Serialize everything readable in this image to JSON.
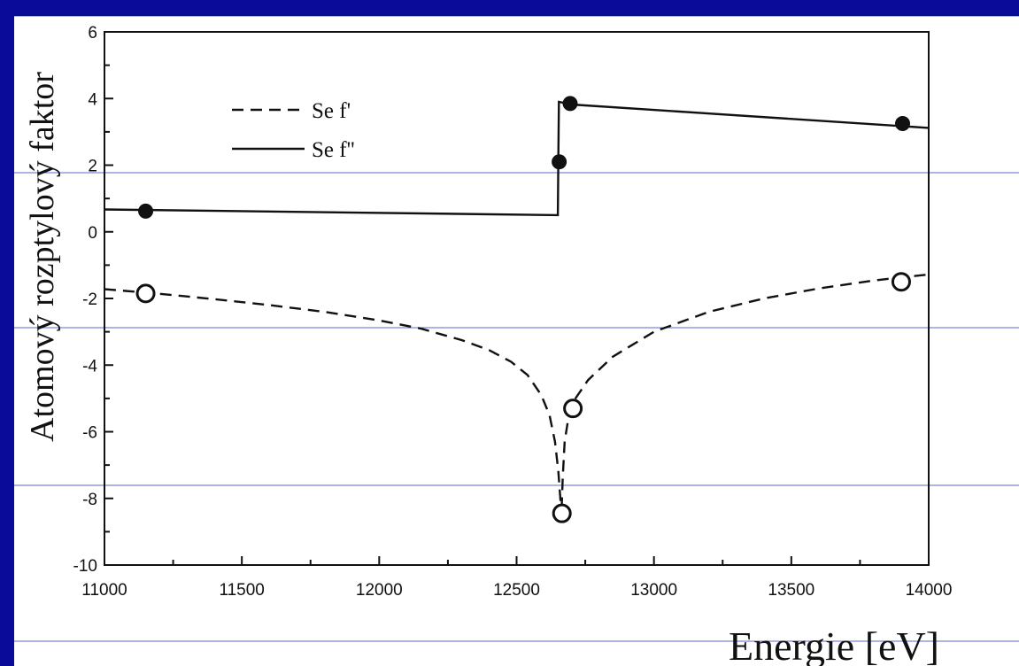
{
  "slide": {
    "background_color": "#0b0b9a",
    "panel_color": "#ffffff",
    "guide_line_color": "#5a6ad0"
  },
  "chart_data": {
    "type": "line",
    "xlabel": "Energie [eV]",
    "ylabel": "Atomový rozptylový faktor",
    "xlim": [
      11000,
      14000
    ],
    "ylim": [
      -10,
      6
    ],
    "x_ticks": [
      11000,
      11500,
      12000,
      12500,
      13000,
      13500,
      14000
    ],
    "y_ticks": [
      -10,
      -8,
      -6,
      -4,
      -2,
      0,
      2,
      4,
      6
    ],
    "grid": false,
    "legend_position": "top-left",
    "series": [
      {
        "name": "Se f'",
        "style": "dashed",
        "curve": [
          [
            11000,
            -1.72
          ],
          [
            11200,
            -1.86
          ],
          [
            11400,
            -2.02
          ],
          [
            11600,
            -2.2
          ],
          [
            11800,
            -2.4
          ],
          [
            12000,
            -2.66
          ],
          [
            12150,
            -2.9
          ],
          [
            12300,
            -3.25
          ],
          [
            12400,
            -3.55
          ],
          [
            12480,
            -3.9
          ],
          [
            12540,
            -4.3
          ],
          [
            12590,
            -4.9
          ],
          [
            12620,
            -5.5
          ],
          [
            12640,
            -6.3
          ],
          [
            12652,
            -7.2
          ],
          [
            12660,
            -8.1
          ],
          [
            12664,
            -8.3
          ],
          [
            12668,
            -7.4
          ],
          [
            12675,
            -6.3
          ],
          [
            12690,
            -5.5
          ],
          [
            12710,
            -5.05
          ],
          [
            12760,
            -4.45
          ],
          [
            12850,
            -3.75
          ],
          [
            13000,
            -3.0
          ],
          [
            13200,
            -2.4
          ],
          [
            13400,
            -2.0
          ],
          [
            13600,
            -1.7
          ],
          [
            13800,
            -1.46
          ],
          [
            14000,
            -1.28
          ]
        ],
        "points": [
          [
            11150,
            -1.85
          ],
          [
            12665,
            -8.45
          ],
          [
            12705,
            -5.3
          ],
          [
            13900,
            -1.5
          ]
        ],
        "marker": "open-circle"
      },
      {
        "name": "Se f''",
        "style": "solid",
        "curve": [
          [
            11000,
            0.67
          ],
          [
            12650,
            0.5
          ],
          [
            12652,
            2.3
          ],
          [
            12654,
            3.9
          ],
          [
            12700,
            3.82
          ],
          [
            14000,
            3.12
          ]
        ],
        "points": [
          [
            11150,
            0.62
          ],
          [
            12655,
            2.1
          ],
          [
            12695,
            3.85
          ],
          [
            13905,
            3.25
          ]
        ],
        "marker": "filled-circle"
      }
    ]
  }
}
